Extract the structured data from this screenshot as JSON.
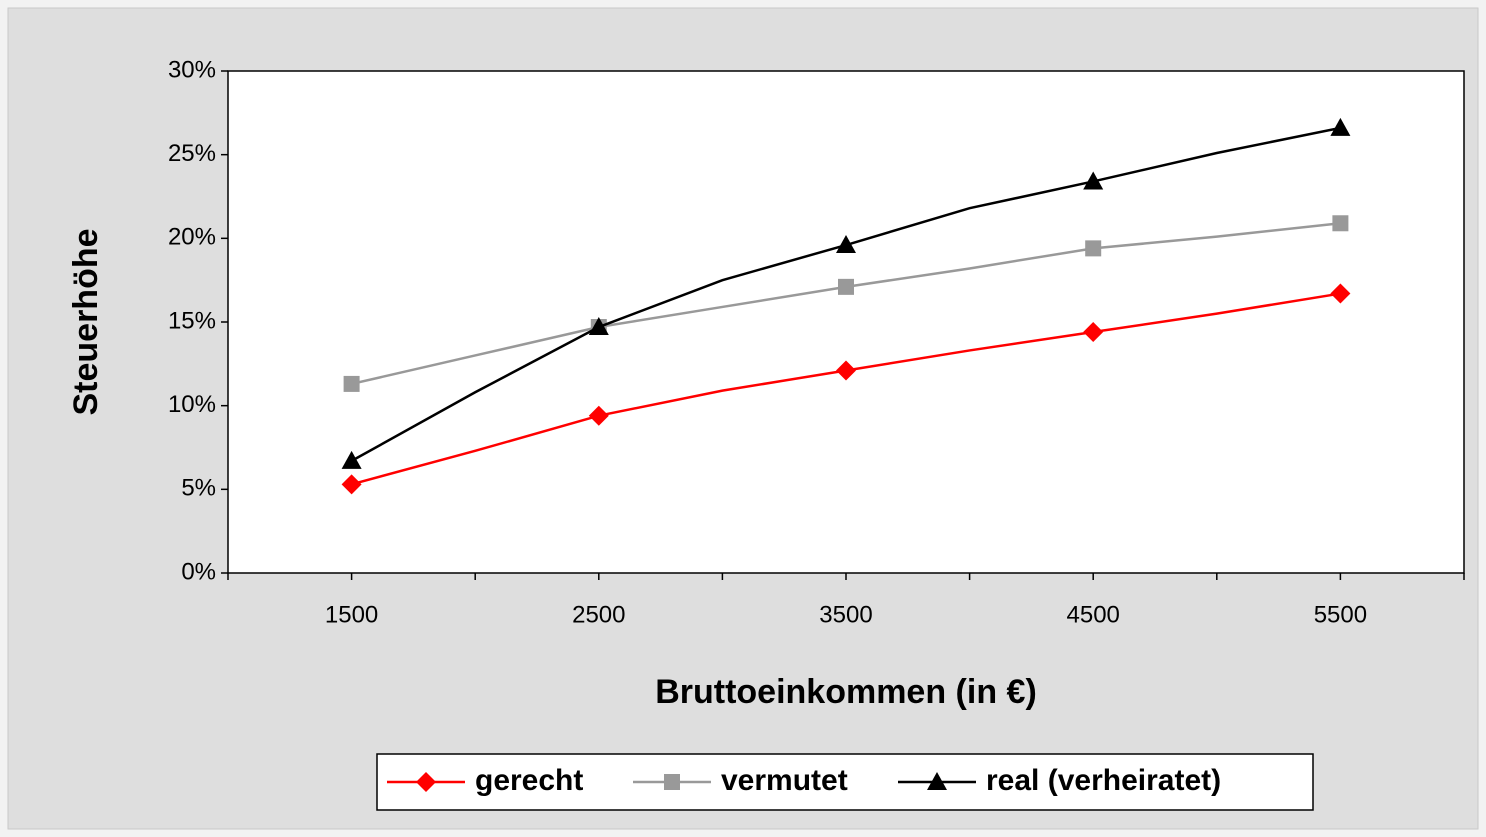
{
  "chart_data": {
    "type": "line",
    "xlabel": "Bruttoeinkommen (in €)",
    "ylabel": "Steuerhöhe",
    "x": [
      1500,
      2000,
      2500,
      3000,
      3500,
      4000,
      4500,
      5000,
      5500
    ],
    "markevery": 2,
    "series": [
      {
        "name": "gerecht",
        "color": "#ff0000",
        "marker": "diamond",
        "values": [
          5.3,
          7.3,
          9.4,
          10.9,
          12.1,
          13.3,
          14.4,
          15.5,
          16.7
        ]
      },
      {
        "name": "vermutet",
        "color": "#999999",
        "marker": "square",
        "values": [
          11.3,
          13.0,
          14.7,
          15.9,
          17.1,
          18.2,
          19.4,
          20.1,
          20.9
        ]
      },
      {
        "name": "real (verheiratet)",
        "color": "#000000",
        "marker": "triangle",
        "values": [
          6.7,
          10.8,
          14.7,
          17.5,
          19.6,
          21.8,
          23.4,
          25.1,
          26.6
        ]
      }
    ],
    "xlim": [
      1000,
      6000
    ],
    "xticks": [
      1500,
      2500,
      3500,
      4500,
      5500
    ],
    "xminorticks": [
      1000,
      1500,
      2000,
      2500,
      3000,
      3500,
      4000,
      4500,
      5000,
      5500,
      6000
    ],
    "ylim": [
      0,
      30
    ],
    "yticks": [
      {
        "value": 0,
        "label": "0%"
      },
      {
        "value": 5,
        "label": "5%"
      },
      {
        "value": 10,
        "label": "10%"
      },
      {
        "value": 15,
        "label": "15%"
      },
      {
        "value": 20,
        "label": "20%"
      },
      {
        "value": 25,
        "label": "25%"
      },
      {
        "value": 30,
        "label": "30%"
      }
    ],
    "legend": "bottom"
  }
}
